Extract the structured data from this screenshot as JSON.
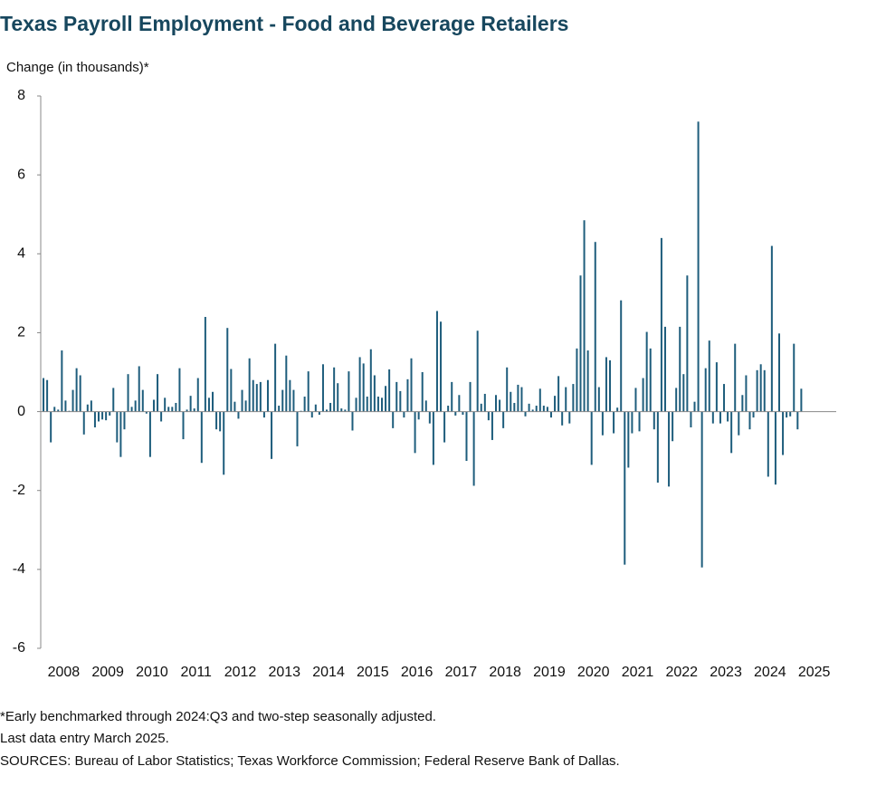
{
  "chart_data": {
    "type": "bar",
    "title": "Texas Payroll Employment - Food and Beverage Retailers",
    "y_label": "Change (in thousands)*",
    "notes": [
      "*Early benchmarked through 2024:Q3 and two-step seasonally adjusted.",
      "Last data entry March 2025.",
      "SOURCES: Bureau of Labor Statistics; Texas Workforce Commission; Federal Reserve Bank of Dallas."
    ],
    "categories": [
      "2008",
      null,
      null,
      null,
      null,
      null,
      null,
      null,
      null,
      null,
      null,
      null,
      "2009",
      null,
      null,
      null,
      null,
      null,
      null,
      null,
      null,
      null,
      null,
      null,
      "2010",
      null,
      null,
      null,
      null,
      null,
      null,
      null,
      null,
      null,
      null,
      null,
      "2011",
      null,
      null,
      null,
      null,
      null,
      null,
      null,
      null,
      null,
      null,
      null,
      "2012",
      null,
      null,
      null,
      null,
      null,
      null,
      null,
      null,
      null,
      null,
      null,
      "2013",
      null,
      null,
      null,
      null,
      null,
      null,
      null,
      null,
      null,
      null,
      null,
      "2014",
      null,
      null,
      null,
      null,
      null,
      null,
      null,
      null,
      null,
      null,
      null,
      "2015",
      null,
      null,
      null,
      null,
      null,
      null,
      null,
      null,
      null,
      null,
      null,
      "2016",
      null,
      null,
      null,
      null,
      null,
      null,
      null,
      null,
      null,
      null,
      null,
      "2017",
      null,
      null,
      null,
      null,
      null,
      null,
      null,
      null,
      null,
      null,
      null,
      "2018",
      null,
      null,
      null,
      null,
      null,
      null,
      null,
      null,
      null,
      null,
      null,
      "2019",
      null,
      null,
      null,
      null,
      null,
      null,
      null,
      null,
      null,
      null,
      null,
      "2020",
      null,
      null,
      null,
      null,
      null,
      null,
      null,
      null,
      null,
      null,
      null,
      "2021",
      null,
      null,
      null,
      null,
      null,
      null,
      null,
      null,
      null,
      null,
      null,
      "2022",
      null,
      null,
      null,
      null,
      null,
      null,
      null,
      null,
      null,
      null,
      null,
      "2023",
      null,
      null,
      null,
      null,
      null,
      null,
      null,
      null,
      null,
      null,
      null,
      "2024",
      null,
      null,
      null,
      null,
      null,
      null,
      null,
      null,
      null,
      null,
      null,
      "2025",
      null,
      null
    ],
    "values": [
      0.85,
      0.8,
      -0.78,
      0.12,
      0.05,
      1.55,
      0.28,
      0.02,
      0.55,
      1.1,
      0.92,
      -0.58,
      0.18,
      0.28,
      -0.4,
      -0.25,
      -0.2,
      -0.22,
      -0.1,
      0.6,
      -0.78,
      -1.15,
      -0.45,
      0.95,
      0.12,
      0.28,
      1.15,
      0.55,
      -0.05,
      -1.15,
      0.3,
      0.95,
      -0.25,
      0.35,
      0.12,
      0.12,
      0.22,
      1.1,
      -0.7,
      0.05,
      0.4,
      0.08,
      0.85,
      -1.3,
      2.4,
      0.35,
      0.5,
      -0.45,
      -0.5,
      -1.6,
      2.12,
      1.08,
      0.25,
      -0.18,
      0.55,
      0.28,
      1.35,
      0.8,
      0.7,
      0.75,
      -0.15,
      0.8,
      -1.2,
      1.72,
      0.15,
      0.55,
      1.42,
      0.8,
      0.55,
      -0.88,
      0.02,
      0.38,
      1.02,
      -0.15,
      0.18,
      -0.08,
      1.2,
      0.05,
      0.22,
      1.12,
      0.72,
      0.08,
      0.05,
      1.02,
      -0.48,
      0.35,
      1.38,
      1.22,
      0.38,
      1.58,
      0.92,
      0.38,
      0.35,
      0.65,
      1.07,
      -0.42,
      0.75,
      0.52,
      -0.15,
      0.82,
      1.35,
      -1.05,
      -0.2,
      1.0,
      0.28,
      -0.3,
      -1.35,
      2.55,
      2.28,
      -0.78,
      0.15,
      0.75,
      -0.1,
      0.42,
      -0.08,
      -1.25,
      0.75,
      -1.88,
      2.05,
      0.2,
      0.45,
      -0.22,
      -0.72,
      0.42,
      0.3,
      -0.42,
      1.12,
      0.5,
      0.22,
      0.68,
      0.62,
      -0.12,
      0.2,
      0.05,
      0.15,
      0.58,
      0.15,
      0.12,
      -0.15,
      0.4,
      0.9,
      -0.35,
      0.62,
      -0.3,
      0.7,
      1.6,
      3.45,
      4.85,
      1.55,
      -1.35,
      4.3,
      0.62,
      -0.6,
      1.38,
      1.3,
      -0.55,
      0.1,
      2.82,
      -3.88,
      -1.42,
      -0.55,
      0.6,
      -0.5,
      0.85,
      2.02,
      1.6,
      -0.45,
      -1.8,
      4.4,
      2.15,
      -1.9,
      -0.75,
      0.6,
      2.15,
      0.95,
      3.45,
      -0.4,
      0.25,
      7.35,
      -3.95,
      1.1,
      1.8,
      -0.3,
      1.25,
      -0.3,
      0.7,
      -0.25,
      -1.05,
      1.72,
      -0.6,
      0.42,
      0.92,
      -0.45,
      -0.15,
      1.05,
      1.2,
      1.05,
      -1.65,
      4.2,
      -1.85,
      1.98,
      -1.1,
      -0.15,
      -0.12,
      1.72,
      -0.45,
      0.58
    ],
    "color": "#1e5d7c",
    "ylim": [
      -6,
      8
    ],
    "yticks": [
      -6,
      -4,
      -2,
      0,
      2,
      4,
      6,
      8
    ],
    "grid": false
  }
}
